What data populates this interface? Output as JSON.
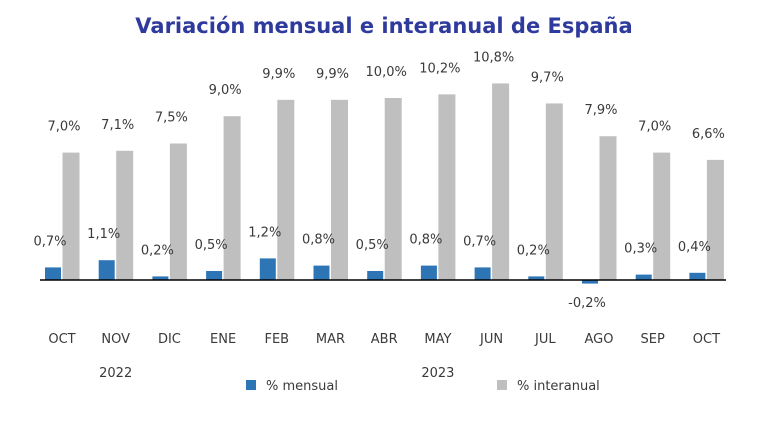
{
  "chart_data": {
    "type": "bar",
    "title": "Variación mensual e interanual de España",
    "categories": [
      "OCT",
      "NOV",
      "DIC",
      "ENE",
      "FEB",
      "MAR",
      "ABR",
      "MAY",
      "JUN",
      "JUL",
      "AGO",
      "SEP",
      "OCT"
    ],
    "years": [
      {
        "label": "2022",
        "under_index": 1
      },
      {
        "label": "2023",
        "under_index": 7
      }
    ],
    "series": [
      {
        "name": "% mensual",
        "color": "#2e75b6",
        "values": [
          0.7,
          1.1,
          0.2,
          0.5,
          1.2,
          0.8,
          0.5,
          0.8,
          0.7,
          0.2,
          -0.2,
          0.3,
          0.4
        ],
        "labels": [
          "0,7%",
          "1,1%",
          "0,2%",
          "0,5%",
          "1,2%",
          "0,8%",
          "0,5%",
          "0,8%",
          "0,7%",
          "0,2%",
          "-0,2%",
          "0,3%",
          "0,4%"
        ]
      },
      {
        "name": "% interanual",
        "color": "#bfbfbf",
        "values": [
          7.0,
          7.1,
          7.5,
          9.0,
          9.9,
          9.9,
          10.0,
          10.2,
          10.8,
          9.7,
          7.9,
          7.0,
          6.6
        ],
        "labels": [
          "7,0%",
          "7,1%",
          "7,5%",
          "9,0%",
          "9,9%",
          "9,9%",
          "10,0%",
          "10,2%",
          "10,8%",
          "9,7%",
          "7,9%",
          "7,0%",
          "6,6%"
        ]
      }
    ],
    "legend_position": "bottom",
    "grid": false
  }
}
